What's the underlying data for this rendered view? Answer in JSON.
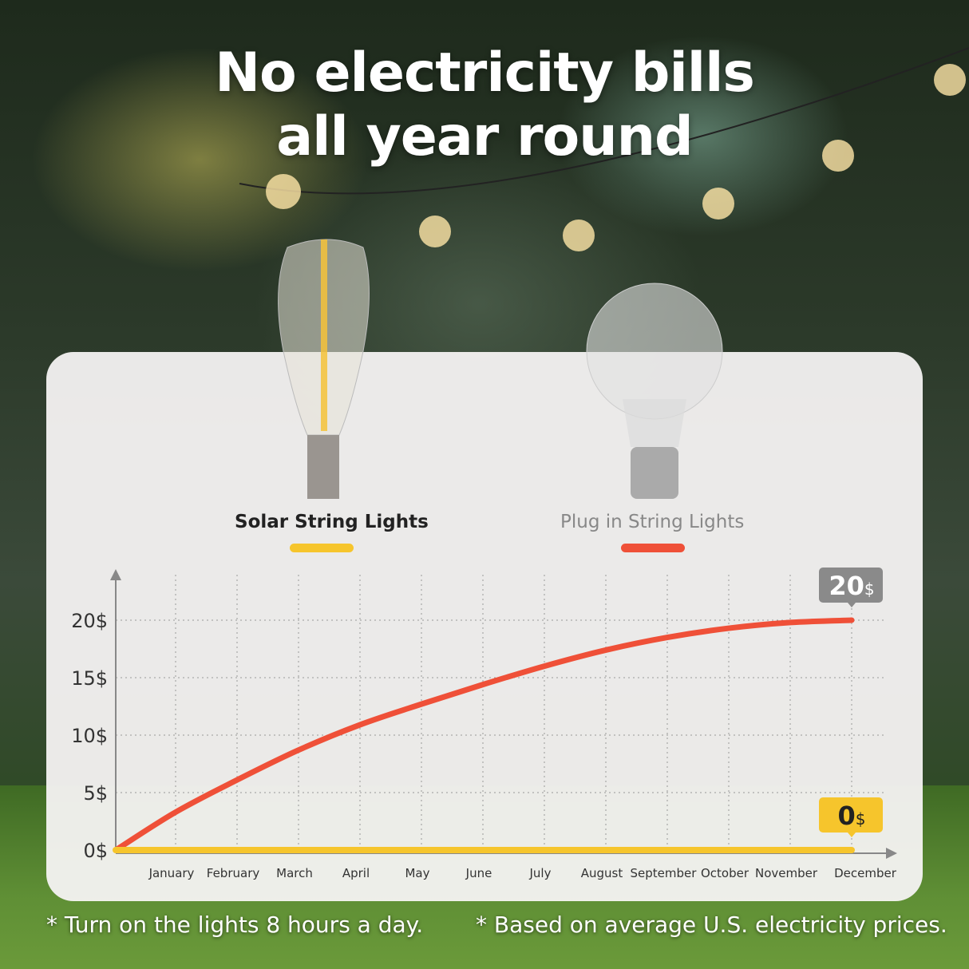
{
  "headline": {
    "line1": "No electricity bills",
    "line2": "all year round"
  },
  "legend": [
    {
      "label": "Solar String Lights",
      "color": "#f6c52c"
    },
    {
      "label": "Plug in String Lights",
      "color": "#ef5038"
    }
  ],
  "chart_data": {
    "type": "line",
    "title": "",
    "xlabel": "",
    "ylabel": "",
    "categories": [
      "January",
      "February",
      "March",
      "April",
      "May",
      "June",
      "July",
      "August",
      "September",
      "October",
      "November",
      "December"
    ],
    "y_ticks": [
      "0$",
      "5$",
      "10$",
      "15$",
      "20$"
    ],
    "ylim": [
      0,
      20
    ],
    "grid": true,
    "legend_position": "top",
    "series": [
      {
        "name": "Plug in String Lights",
        "color": "#ef5038",
        "start": 0,
        "values": [
          3.3,
          6.1,
          8.7,
          10.9,
          12.7,
          14.4,
          16.0,
          17.4,
          18.5,
          19.3,
          19.8,
          20
        ]
      },
      {
        "name": "Solar String Lights",
        "color": "#f6c52c",
        "start": 0,
        "values": [
          0,
          0,
          0,
          0,
          0,
          0,
          0,
          0,
          0,
          0,
          0,
          0
        ]
      }
    ],
    "annotations": [
      {
        "series": "Plug in String Lights",
        "value": "20",
        "unit": "$",
        "color": "#8a8a8a"
      },
      {
        "series": "Solar String Lights",
        "value": "0",
        "unit": "$",
        "color": "#f6c52c"
      }
    ]
  },
  "footnotes": [
    "* Turn on the lights 8 hours a day.",
    "* Based on average U.S. electricity prices."
  ]
}
